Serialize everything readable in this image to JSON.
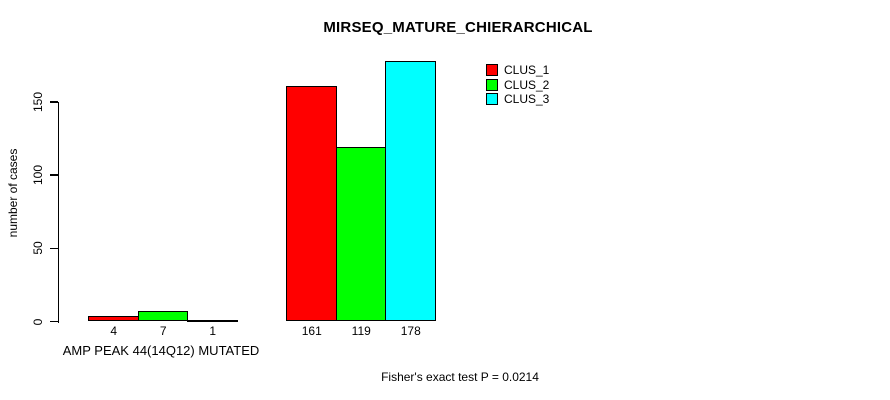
{
  "chart_data": {
    "type": "bar",
    "title": "MIRSEQ_MATURE_CHIERARCHICAL",
    "ylabel": "number of cases",
    "xlabel": "",
    "categories": [
      "AMP PEAK 44(14Q12) MUTATED",
      ""
    ],
    "series": [
      {
        "name": "CLUS_1",
        "color": "#FF0000",
        "values": [
          4,
          161
        ]
      },
      {
        "name": "CLUS_2",
        "color": "#00FF00",
        "values": [
          7,
          119
        ]
      },
      {
        "name": "CLUS_3",
        "color": "#00FFFF",
        "values": [
          1,
          178
        ]
      }
    ],
    "bar_value_labels": [
      [
        "4",
        "7",
        "1"
      ],
      [
        "161",
        "119",
        "178"
      ]
    ],
    "yticks": [
      0,
      50,
      100,
      150
    ],
    "ylim": [
      0,
      178
    ],
    "grid": false,
    "legend_position": "top-right",
    "legend_entries": [
      "CLUS_1",
      "CLUS_2",
      "CLUS_3"
    ],
    "annotation": "Fisher's exact test P = 0.0214",
    "background_color": "#FFFFFF",
    "axis_color": "#000000"
  }
}
